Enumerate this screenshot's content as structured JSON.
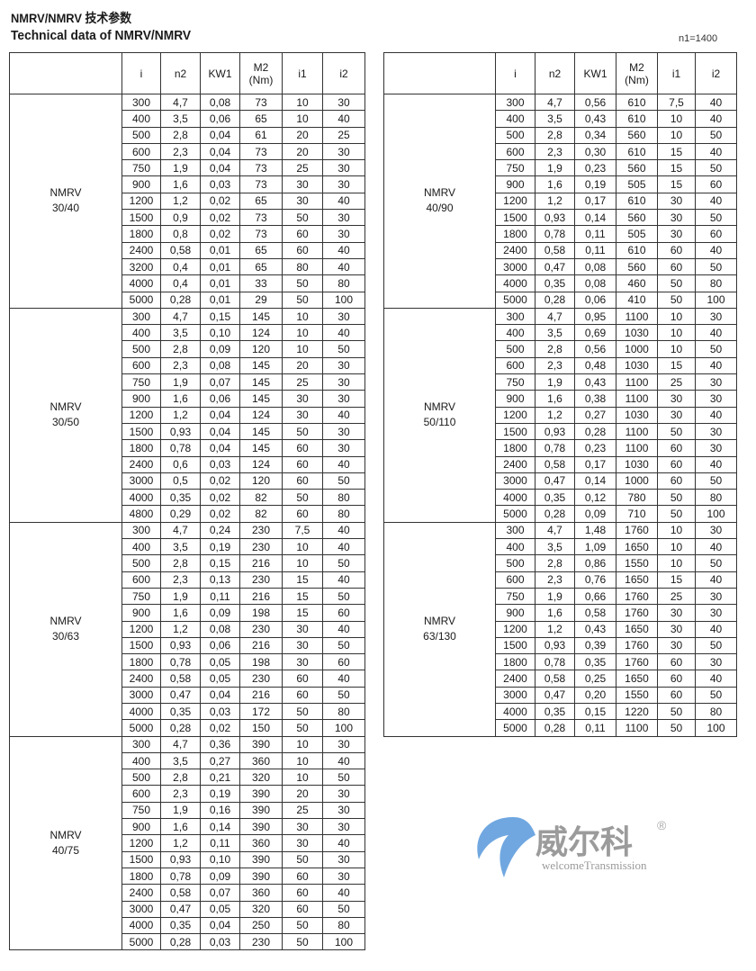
{
  "title_cn": "NMRV/NMRV 技术参数",
  "title_en": "Technical data of NMRV/NMRV",
  "speed_note": "n1=1400",
  "watermark": {
    "text": "威尔科",
    "subtext": "welcomeTransmission",
    "mark": "®"
  },
  "headers": [
    "",
    "i",
    "n2",
    "KW1",
    "M2\n(Nm)",
    "i1",
    "i2"
  ],
  "left_groups": [
    {
      "model": "NMRV",
      "size": "30/40",
      "rows": [
        [
          "300",
          "4,7",
          "0,08",
          "73",
          "10",
          "30"
        ],
        [
          "400",
          "3,5",
          "0,06",
          "65",
          "10",
          "40"
        ],
        [
          "500",
          "2,8",
          "0,04",
          "61",
          "20",
          "25"
        ],
        [
          "600",
          "2,3",
          "0,04",
          "73",
          "20",
          "30"
        ],
        [
          "750",
          "1,9",
          "0,04",
          "73",
          "25",
          "30"
        ],
        [
          "900",
          "1,6",
          "0,03",
          "73",
          "30",
          "30"
        ],
        [
          "1200",
          "1,2",
          "0,02",
          "65",
          "30",
          "40"
        ],
        [
          "1500",
          "0,9",
          "0,02",
          "73",
          "50",
          "30"
        ],
        [
          "1800",
          "0,8",
          "0,02",
          "73",
          "60",
          "30"
        ],
        [
          "2400",
          "0,58",
          "0,01",
          "65",
          "60",
          "40"
        ],
        [
          "3200",
          "0,4",
          "0,01",
          "65",
          "80",
          "40"
        ],
        [
          "4000",
          "0,4",
          "0,01",
          "33",
          "50",
          "80"
        ],
        [
          "5000",
          "0,28",
          "0,01",
          "29",
          "50",
          "100"
        ]
      ]
    },
    {
      "model": "NMRV",
      "size": "30/50",
      "rows": [
        [
          "300",
          "4,7",
          "0,15",
          "145",
          "10",
          "30"
        ],
        [
          "400",
          "3,5",
          "0,10",
          "124",
          "10",
          "40"
        ],
        [
          "500",
          "2,8",
          "0,09",
          "120",
          "10",
          "50"
        ],
        [
          "600",
          "2,3",
          "0,08",
          "145",
          "20",
          "30"
        ],
        [
          "750",
          "1,9",
          "0,07",
          "145",
          "25",
          "30"
        ],
        [
          "900",
          "1,6",
          "0,06",
          "145",
          "30",
          "30"
        ],
        [
          "1200",
          "1,2",
          "0,04",
          "124",
          "30",
          "40"
        ],
        [
          "1500",
          "0,93",
          "0,04",
          "145",
          "50",
          "30"
        ],
        [
          "1800",
          "0,78",
          "0,04",
          "145",
          "60",
          "30"
        ],
        [
          "2400",
          "0,6",
          "0,03",
          "124",
          "60",
          "40"
        ],
        [
          "3000",
          "0,5",
          "0,02",
          "120",
          "60",
          "50"
        ],
        [
          "4000",
          "0,35",
          "0,02",
          "82",
          "50",
          "80"
        ],
        [
          "4800",
          "0,29",
          "0,02",
          "82",
          "60",
          "80"
        ]
      ]
    },
    {
      "model": "NMRV",
      "size": "30/63",
      "rows": [
        [
          "300",
          "4,7",
          "0,24",
          "230",
          "7,5",
          "40"
        ],
        [
          "400",
          "3,5",
          "0,19",
          "230",
          "10",
          "40"
        ],
        [
          "500",
          "2,8",
          "0,15",
          "216",
          "10",
          "50"
        ],
        [
          "600",
          "2,3",
          "0,13",
          "230",
          "15",
          "40"
        ],
        [
          "750",
          "1,9",
          "0,11",
          "216",
          "15",
          "50"
        ],
        [
          "900",
          "1,6",
          "0,09",
          "198",
          "15",
          "60"
        ],
        [
          "1200",
          "1,2",
          "0,08",
          "230",
          "30",
          "40"
        ],
        [
          "1500",
          "0,93",
          "0,06",
          "216",
          "30",
          "50"
        ],
        [
          "1800",
          "0,78",
          "0,05",
          "198",
          "30",
          "60"
        ],
        [
          "2400",
          "0,58",
          "0,05",
          "230",
          "60",
          "40"
        ],
        [
          "3000",
          "0,47",
          "0,04",
          "216",
          "60",
          "50"
        ],
        [
          "4000",
          "0,35",
          "0,03",
          "172",
          "50",
          "80"
        ],
        [
          "5000",
          "0,28",
          "0,02",
          "150",
          "50",
          "100"
        ]
      ]
    },
    {
      "model": "NMRV",
      "size": "40/75",
      "rows": [
        [
          "300",
          "4,7",
          "0,36",
          "390",
          "10",
          "30"
        ],
        [
          "400",
          "3,5",
          "0,27",
          "360",
          "10",
          "40"
        ],
        [
          "500",
          "2,8",
          "0,21",
          "320",
          "10",
          "50"
        ],
        [
          "600",
          "2,3",
          "0,19",
          "390",
          "20",
          "30"
        ],
        [
          "750",
          "1,9",
          "0,16",
          "390",
          "25",
          "30"
        ],
        [
          "900",
          "1,6",
          "0,14",
          "390",
          "30",
          "30"
        ],
        [
          "1200",
          "1,2",
          "0,11",
          "360",
          "30",
          "40"
        ],
        [
          "1500",
          "0,93",
          "0,10",
          "390",
          "50",
          "30"
        ],
        [
          "1800",
          "0,78",
          "0,09",
          "390",
          "60",
          "30"
        ],
        [
          "2400",
          "0,58",
          "0,07",
          "360",
          "60",
          "40"
        ],
        [
          "3000",
          "0,47",
          "0,05",
          "320",
          "60",
          "50"
        ],
        [
          "4000",
          "0,35",
          "0,04",
          "250",
          "50",
          "80"
        ],
        [
          "5000",
          "0,28",
          "0,03",
          "230",
          "50",
          "100"
        ]
      ]
    }
  ],
  "right_groups": [
    {
      "model": "NMRV",
      "size": "40/90",
      "rows": [
        [
          "300",
          "4,7",
          "0,56",
          "610",
          "7,5",
          "40"
        ],
        [
          "400",
          "3,5",
          "0,43",
          "610",
          "10",
          "40"
        ],
        [
          "500",
          "2,8",
          "0,34",
          "560",
          "10",
          "50"
        ],
        [
          "600",
          "2,3",
          "0,30",
          "610",
          "15",
          "40"
        ],
        [
          "750",
          "1,9",
          "0,23",
          "560",
          "15",
          "50"
        ],
        [
          "900",
          "1,6",
          "0,19",
          "505",
          "15",
          "60"
        ],
        [
          "1200",
          "1,2",
          "0,17",
          "610",
          "30",
          "40"
        ],
        [
          "1500",
          "0,93",
          "0,14",
          "560",
          "30",
          "50"
        ],
        [
          "1800",
          "0,78",
          "0,11",
          "505",
          "30",
          "60"
        ],
        [
          "2400",
          "0,58",
          "0,11",
          "610",
          "60",
          "40"
        ],
        [
          "3000",
          "0,47",
          "0,08",
          "560",
          "60",
          "50"
        ],
        [
          "4000",
          "0,35",
          "0,08",
          "460",
          "50",
          "80"
        ],
        [
          "5000",
          "0,28",
          "0,06",
          "410",
          "50",
          "100"
        ]
      ]
    },
    {
      "model": "NMRV",
      "size": "50/110",
      "rows": [
        [
          "300",
          "4,7",
          "0,95",
          "1100",
          "10",
          "30"
        ],
        [
          "400",
          "3,5",
          "0,69",
          "1030",
          "10",
          "40"
        ],
        [
          "500",
          "2,8",
          "0,56",
          "1000",
          "10",
          "50"
        ],
        [
          "600",
          "2,3",
          "0,48",
          "1030",
          "15",
          "40"
        ],
        [
          "750",
          "1,9",
          "0,43",
          "1100",
          "25",
          "30"
        ],
        [
          "900",
          "1,6",
          "0,38",
          "1100",
          "30",
          "30"
        ],
        [
          "1200",
          "1,2",
          "0,27",
          "1030",
          "30",
          "40"
        ],
        [
          "1500",
          "0,93",
          "0,28",
          "1100",
          "50",
          "30"
        ],
        [
          "1800",
          "0,78",
          "0,23",
          "1100",
          "60",
          "30"
        ],
        [
          "2400",
          "0,58",
          "0,17",
          "1030",
          "60",
          "40"
        ],
        [
          "3000",
          "0,47",
          "0,14",
          "1000",
          "60",
          "50"
        ],
        [
          "4000",
          "0,35",
          "0,12",
          "780",
          "50",
          "80"
        ],
        [
          "5000",
          "0,28",
          "0,09",
          "710",
          "50",
          "100"
        ]
      ]
    },
    {
      "model": "NMRV",
      "size": "63/130",
      "rows": [
        [
          "300",
          "4,7",
          "1,48",
          "1760",
          "10",
          "30"
        ],
        [
          "400",
          "3,5",
          "1,09",
          "1650",
          "10",
          "40"
        ],
        [
          "500",
          "2,8",
          "0,86",
          "1550",
          "10",
          "50"
        ],
        [
          "600",
          "2,3",
          "0,76",
          "1650",
          "15",
          "40"
        ],
        [
          "750",
          "1,9",
          "0,66",
          "1760",
          "25",
          "30"
        ],
        [
          "900",
          "1,6",
          "0,58",
          "1760",
          "30",
          "30"
        ],
        [
          "1200",
          "1,2",
          "0,43",
          "1650",
          "30",
          "40"
        ],
        [
          "1500",
          "0,93",
          "0,39",
          "1760",
          "30",
          "50"
        ],
        [
          "1800",
          "0,78",
          "0,35",
          "1760",
          "60",
          "30"
        ],
        [
          "2400",
          "0,58",
          "0,25",
          "1650",
          "60",
          "40"
        ],
        [
          "3000",
          "0,47",
          "0,20",
          "1550",
          "60",
          "50"
        ],
        [
          "4000",
          "0,35",
          "0,15",
          "1220",
          "50",
          "80"
        ],
        [
          "5000",
          "0,28",
          "0,11",
          "1100",
          "50",
          "100"
        ]
      ]
    }
  ]
}
